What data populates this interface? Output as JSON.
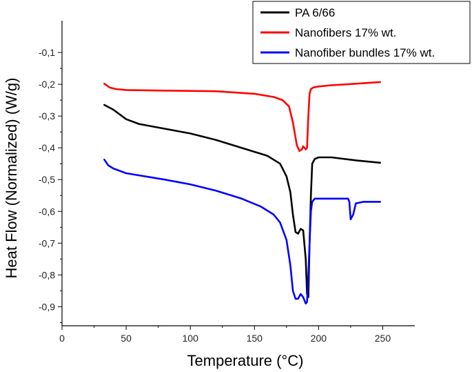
{
  "chart_data": {
    "type": "line",
    "xlabel": "Temperature (°C)",
    "ylabel": "Heat Flow (Normalized) (W/g)",
    "xlim": [
      0,
      275
    ],
    "ylim": [
      -0.96,
      0.0
    ],
    "xticks": [
      0,
      50,
      100,
      150,
      200,
      250
    ],
    "xtick_labels": [
      "0",
      "50",
      "100",
      "150",
      "200",
      "250"
    ],
    "yticks": [
      -0.1,
      -0.2,
      -0.3,
      -0.4,
      -0.5,
      -0.6,
      -0.7,
      -0.8,
      -0.9
    ],
    "ytick_labels": [
      "-0,1",
      "-0,2",
      "-0,3",
      "-0,4",
      "-0,5",
      "-0,6",
      "-0,7",
      "-0,8",
      "-0,9"
    ],
    "grid": false,
    "legend_position": "top-right",
    "series": [
      {
        "name": "PA 6/66",
        "color": "#000000",
        "x": [
          33,
          40,
          45,
          50,
          60,
          80,
          100,
          120,
          140,
          160,
          170,
          175,
          178,
          180,
          182,
          184,
          186,
          188,
          190,
          191,
          192,
          193,
          194,
          195,
          197,
          200,
          210,
          230,
          248
        ],
        "y": [
          -0.265,
          -0.28,
          -0.295,
          -0.31,
          -0.325,
          -0.34,
          -0.355,
          -0.375,
          -0.4,
          -0.425,
          -0.45,
          -0.49,
          -0.54,
          -0.61,
          -0.665,
          -0.67,
          -0.655,
          -0.66,
          -0.75,
          -0.86,
          -0.87,
          -0.7,
          -0.55,
          -0.45,
          -0.435,
          -0.43,
          -0.43,
          -0.44,
          -0.447
        ]
      },
      {
        "name": "Nanofibers 17% wt.",
        "color": "#ff0000",
        "x": [
          33,
          37,
          42,
          50,
          80,
          120,
          150,
          165,
          172,
          177,
          180,
          183,
          185,
          187,
          188,
          189,
          190,
          191,
          192,
          193,
          194,
          196,
          200,
          210,
          230,
          248
        ],
        "y": [
          -0.198,
          -0.21,
          -0.215,
          -0.218,
          -0.22,
          -0.222,
          -0.23,
          -0.24,
          -0.25,
          -0.27,
          -0.32,
          -0.39,
          -0.41,
          -0.405,
          -0.395,
          -0.4,
          -0.405,
          -0.4,
          -0.3,
          -0.23,
          -0.215,
          -0.21,
          -0.207,
          -0.203,
          -0.198,
          -0.193
        ]
      },
      {
        "name": "Nanofiber bundles 17% wt.",
        "color": "#0000ff",
        "x": [
          33,
          36,
          40,
          50,
          80,
          100,
          120,
          140,
          155,
          165,
          170,
          175,
          178,
          180,
          182,
          184,
          186,
          188,
          190,
          191,
          192,
          193,
          194,
          195,
          197,
          200,
          210,
          220,
          223,
          224,
          225,
          227,
          229,
          235,
          248
        ],
        "y": [
          -0.437,
          -0.455,
          -0.465,
          -0.48,
          -0.5,
          -0.515,
          -0.535,
          -0.56,
          -0.585,
          -0.61,
          -0.635,
          -0.69,
          -0.77,
          -0.85,
          -0.875,
          -0.875,
          -0.86,
          -0.87,
          -0.89,
          -0.885,
          -0.8,
          -0.7,
          -0.6,
          -0.57,
          -0.56,
          -0.56,
          -0.56,
          -0.56,
          -0.56,
          -0.57,
          -0.625,
          -0.61,
          -0.575,
          -0.57,
          -0.57
        ]
      }
    ]
  }
}
